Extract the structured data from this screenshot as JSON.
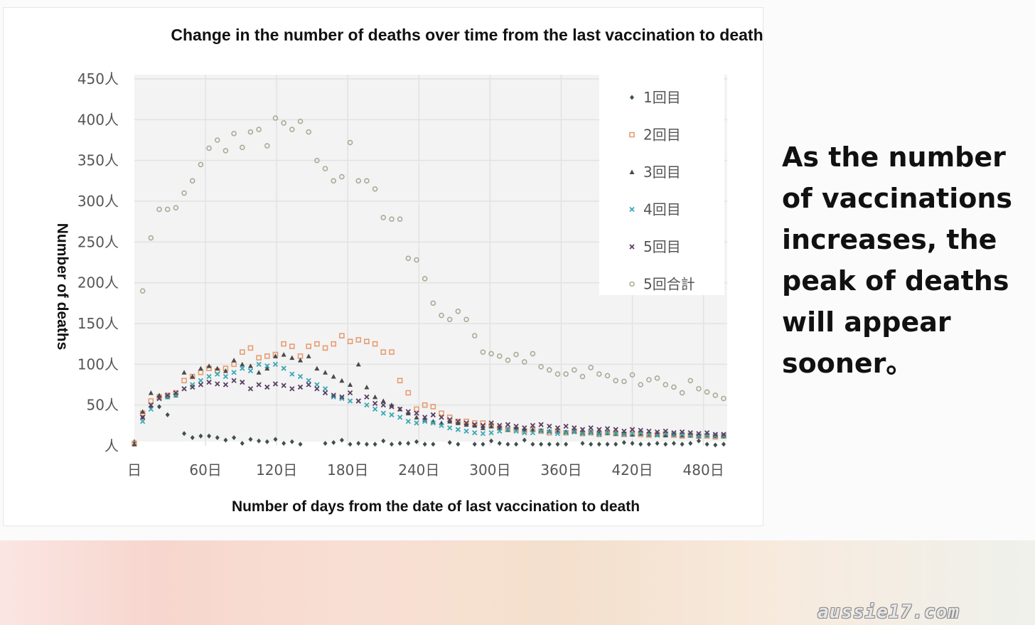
{
  "side_note": "As the number of vaccinations increases, the peak of deaths will appear sooner。",
  "watermark": "aussie17.com",
  "chart_data": {
    "type": "scatter",
    "title": "Change in the number of deaths over time from the last vaccination to death",
    "xlabel": "Number of days from the date of last vaccination to death",
    "ylabel": "Number of deaths",
    "xlim": [
      0,
      500
    ],
    "ylim": [
      0,
      450
    ],
    "x_ticks": [
      0,
      60,
      120,
      180,
      240,
      300,
      360,
      420,
      480
    ],
    "x_tick_labels": [
      "日",
      "60日",
      "120日",
      "180日",
      "240日",
      "300日",
      "360日",
      "420日",
      "480日"
    ],
    "y_ticks": [
      0,
      50,
      100,
      150,
      200,
      250,
      300,
      350,
      400,
      450
    ],
    "y_tick_labels": [
      "人",
      "50人",
      "100人",
      "150人",
      "200人",
      "250人",
      "300人",
      "350人",
      "400人",
      "450人"
    ],
    "grid": true,
    "legend_position": "top-right",
    "series": [
      {
        "name": "1回目",
        "marker": "diamond",
        "color": "#3f4f4f",
        "x": [
          0,
          7,
          14,
          21,
          28,
          42,
          49,
          56,
          63,
          70,
          77,
          84,
          91,
          98,
          105,
          112,
          119,
          126,
          133,
          140,
          161,
          168,
          175,
          182,
          189,
          196,
          203,
          210,
          217,
          224,
          231,
          238,
          245,
          252,
          266,
          273,
          287,
          294,
          301,
          308,
          315,
          322,
          329,
          336,
          343,
          350,
          357,
          364,
          378,
          385,
          392,
          399,
          406,
          413,
          420,
          427,
          434,
          441,
          448,
          455,
          462,
          469,
          476,
          483,
          490,
          497
        ],
        "y": [
          5,
          35,
          48,
          48,
          38,
          15,
          10,
          12,
          12,
          10,
          7,
          10,
          3,
          8,
          6,
          5,
          8,
          3,
          5,
          2,
          3,
          4,
          7,
          2,
          3,
          2,
          2,
          6,
          2,
          3,
          3,
          5,
          2,
          2,
          4,
          2,
          2,
          2,
          6,
          3,
          2,
          2,
          7,
          2,
          2,
          2,
          2,
          2,
          3,
          2,
          2,
          2,
          2,
          4,
          3,
          2,
          2,
          3,
          2,
          3,
          2,
          3,
          6,
          2,
          1,
          2
        ]
      },
      {
        "name": "2回目",
        "marker": "square",
        "color": "#e59d72",
        "x": [
          0,
          7,
          14,
          21,
          28,
          35,
          42,
          49,
          56,
          63,
          70,
          77,
          84,
          91,
          98,
          105,
          112,
          119,
          126,
          133,
          140,
          147,
          154,
          161,
          168,
          175,
          182,
          189,
          196,
          203,
          210,
          217,
          224,
          231,
          238,
          245,
          252,
          259,
          266,
          273,
          280,
          287,
          294,
          301,
          308,
          315,
          322,
          329,
          336,
          343,
          350,
          357,
          364,
          371,
          378,
          385,
          392,
          399,
          406,
          413,
          420,
          427,
          434,
          441,
          448,
          455,
          462,
          469,
          476,
          483,
          490,
          497
        ],
        "y": [
          3,
          40,
          55,
          60,
          62,
          65,
          80,
          85,
          90,
          95,
          92,
          95,
          100,
          115,
          120,
          108,
          110,
          112,
          125,
          122,
          110,
          122,
          125,
          120,
          125,
          135,
          128,
          130,
          128,
          125,
          115,
          115,
          80,
          65,
          45,
          50,
          48,
          40,
          35,
          30,
          30,
          28,
          28,
          25,
          22,
          20,
          20,
          18,
          20,
          18,
          16,
          18,
          16,
          18,
          15,
          16,
          14,
          16,
          15,
          14,
          15,
          14,
          13,
          14,
          14,
          13,
          12,
          13,
          12,
          12,
          11,
          12
        ]
      },
      {
        "name": "3回目",
        "marker": "triangle",
        "color": "#4a4a4a",
        "x": [
          0,
          7,
          14,
          21,
          28,
          35,
          42,
          49,
          56,
          63,
          70,
          77,
          84,
          91,
          98,
          105,
          112,
          119,
          126,
          133,
          140,
          147,
          154,
          161,
          168,
          175,
          182,
          189,
          196,
          203,
          210,
          217,
          224,
          231,
          238,
          245,
          252,
          259,
          266,
          273,
          280,
          287,
          294,
          301,
          308,
          315,
          322,
          329,
          336,
          343,
          350,
          357,
          364,
          371,
          378,
          385,
          392,
          399,
          406,
          413,
          420,
          427,
          434,
          441,
          448,
          455,
          462,
          469,
          476,
          483,
          490,
          497
        ],
        "y": [
          2,
          42,
          65,
          62,
          60,
          62,
          90,
          85,
          95,
          98,
          95,
          92,
          105,
          100,
          98,
          90,
          95,
          110,
          112,
          108,
          105,
          110,
          95,
          90,
          85,
          80,
          75,
          100,
          72,
          60,
          55,
          50,
          45,
          40,
          35,
          32,
          30,
          28,
          30,
          28,
          26,
          25,
          22,
          24,
          22,
          20,
          22,
          20,
          20,
          19,
          18,
          18,
          17,
          18,
          16,
          17,
          16,
          16,
          15,
          15,
          14,
          15,
          14,
          14,
          13,
          14,
          13,
          13,
          12,
          13,
          12,
          12
        ]
      },
      {
        "name": "4回目",
        "marker": "x",
        "color": "#3aa8b6",
        "x": [
          7,
          14,
          21,
          28,
          35,
          42,
          49,
          56,
          63,
          70,
          77,
          84,
          91,
          98,
          105,
          112,
          119,
          126,
          133,
          140,
          147,
          154,
          161,
          168,
          175,
          182,
          189,
          196,
          203,
          210,
          217,
          224,
          231,
          238,
          245,
          252,
          259,
          266,
          273,
          280,
          287,
          294,
          301,
          308,
          315,
          322,
          329,
          336,
          343,
          350,
          357,
          364,
          371,
          378,
          385,
          392,
          399,
          406,
          413,
          420,
          427,
          434,
          441,
          448,
          455,
          462,
          469,
          476,
          483,
          490,
          497
        ],
        "y": [
          30,
          45,
          58,
          60,
          62,
          70,
          75,
          80,
          85,
          88,
          85,
          90,
          95,
          92,
          100,
          98,
          100,
          95,
          88,
          85,
          80,
          75,
          70,
          60,
          58,
          55,
          55,
          50,
          45,
          40,
          38,
          35,
          30,
          28,
          30,
          28,
          25,
          22,
          20,
          18,
          16,
          15,
          16,
          18,
          20,
          18,
          16,
          16,
          18,
          17,
          15,
          16,
          17,
          15,
          16,
          14,
          16,
          15,
          14,
          15,
          16,
          14,
          13,
          15,
          14,
          14,
          13,
          12,
          13,
          12,
          12
        ]
      },
      {
        "name": "5回目",
        "marker": "x",
        "color": "#5a3f63",
        "x": [
          7,
          14,
          21,
          28,
          35,
          42,
          49,
          56,
          63,
          70,
          77,
          84,
          91,
          98,
          105,
          112,
          119,
          126,
          133,
          140,
          147,
          154,
          161,
          168,
          175,
          182,
          189,
          196,
          203,
          210,
          217,
          224,
          231,
          238,
          245,
          252,
          259,
          266,
          273,
          280,
          287,
          294,
          301,
          308,
          315,
          322,
          329,
          336,
          343,
          350,
          357,
          364,
          371,
          378,
          385,
          392,
          399,
          406,
          413,
          420,
          427,
          434,
          441,
          448,
          455,
          462,
          469,
          476,
          483,
          490,
          497
        ],
        "y": [
          35,
          50,
          58,
          62,
          65,
          70,
          72,
          75,
          78,
          76,
          75,
          80,
          78,
          70,
          75,
          72,
          76,
          74,
          70,
          72,
          75,
          70,
          65,
          62,
          60,
          65,
          55,
          60,
          52,
          50,
          48,
          45,
          42,
          40,
          35,
          38,
          35,
          32,
          30,
          28,
          26,
          25,
          28,
          25,
          26,
          24,
          22,
          25,
          26,
          24,
          22,
          24,
          22,
          20,
          22,
          20,
          21,
          20,
          18,
          20,
          19,
          18,
          17,
          18,
          16,
          17,
          16,
          15,
          16,
          14,
          14
        ]
      },
      {
        "name": "5回合計",
        "marker": "circle",
        "color": "#a9ab98",
        "x": [
          7,
          14,
          21,
          28,
          35,
          42,
          49,
          56,
          63,
          70,
          77,
          84,
          91,
          98,
          105,
          112,
          119,
          126,
          133,
          140,
          147,
          154,
          161,
          168,
          175,
          182,
          189,
          196,
          203,
          210,
          217,
          224,
          231,
          238,
          245,
          252,
          259,
          266,
          273,
          280,
          287,
          294,
          301,
          308,
          315,
          322,
          329,
          336,
          343,
          350,
          357,
          364,
          371,
          378,
          385,
          392,
          399,
          406,
          413,
          420,
          427,
          434,
          441,
          448,
          455,
          462,
          469,
          476,
          483,
          490,
          497
        ],
        "y": [
          190,
          255,
          290,
          290,
          292,
          310,
          325,
          345,
          365,
          375,
          362,
          383,
          366,
          385,
          388,
          368,
          402,
          396,
          388,
          398,
          385,
          350,
          340,
          325,
          330,
          372,
          325,
          325,
          315,
          280,
          278,
          278,
          230,
          228,
          205,
          175,
          160,
          155,
          165,
          155,
          135,
          115,
          113,
          110,
          105,
          112,
          103,
          113,
          97,
          93,
          88,
          88,
          93,
          85,
          96,
          88,
          86,
          80,
          79,
          87,
          75,
          81,
          83,
          75,
          72,
          65,
          80,
          70,
          66,
          62,
          58
        ]
      }
    ]
  }
}
